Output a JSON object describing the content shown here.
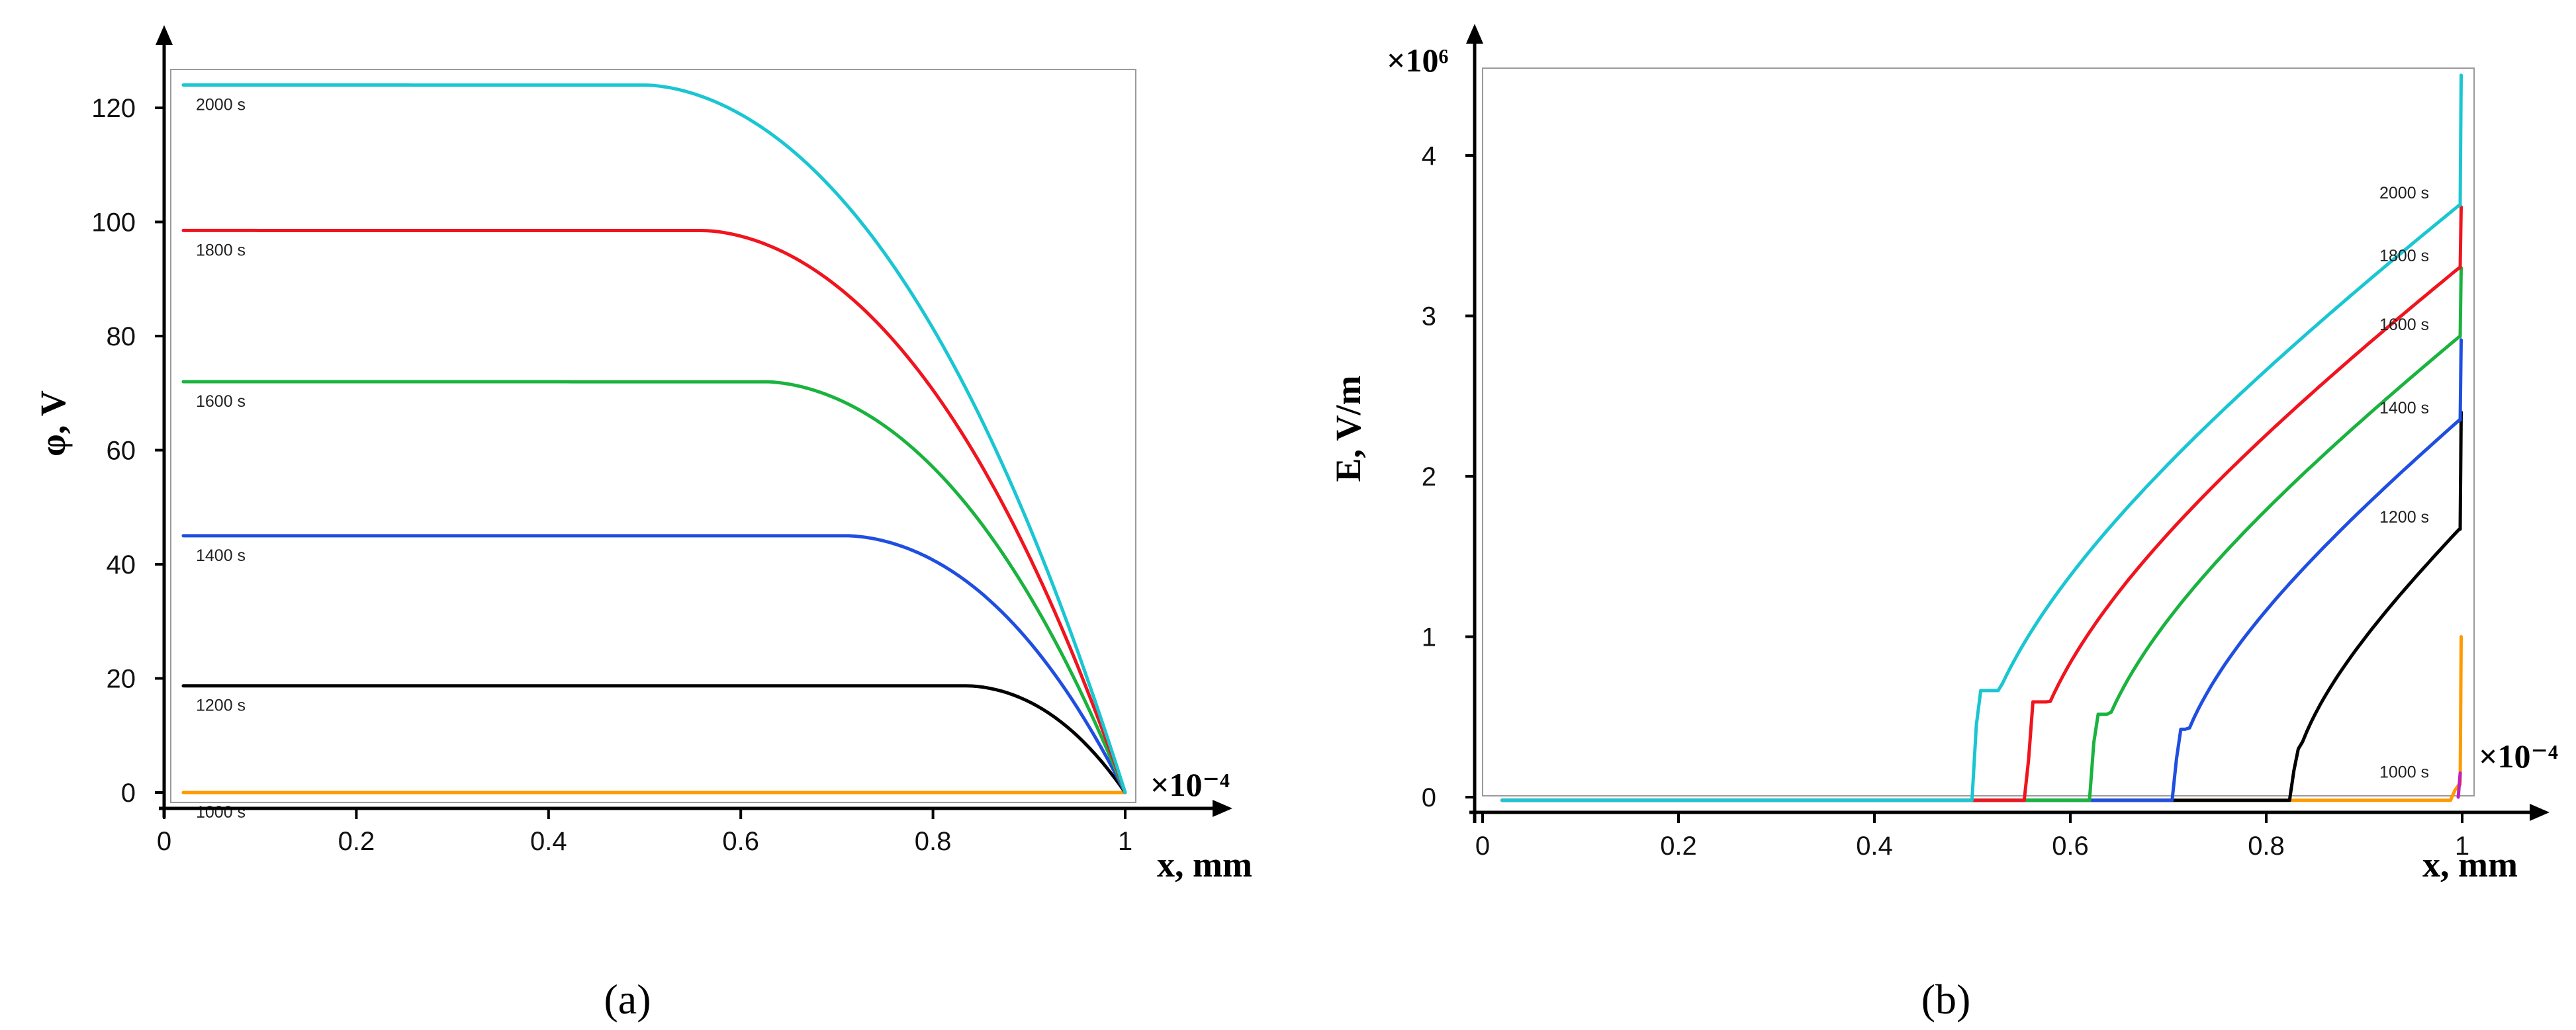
{
  "chart_data": [
    {
      "panel": "a",
      "type": "line",
      "panel_label": "(a)",
      "xlabel": "x, mm",
      "ylabel": "φ, V",
      "x_multiplier": "×10⁻⁴",
      "xlim": [
        0,
        1
      ],
      "ylim": [
        -4,
        128
      ],
      "xticks": [
        0,
        0.2,
        0.4,
        0.6,
        0.8,
        1
      ],
      "xtick_labels": [
        "0",
        "0.2",
        "0.4",
        "0.6",
        "0.8",
        "1"
      ],
      "yticks": [
        0,
        20,
        40,
        60,
        80,
        100,
        120
      ],
      "ytick_labels": [
        "0",
        "20",
        "40",
        "60",
        "80",
        "100",
        "120"
      ],
      "series": [
        {
          "name": "1000 s",
          "color": "#ff9a00",
          "plateau": 0,
          "knee": 0.99,
          "x_start": 0.02,
          "x_end": 1,
          "y_end": 0
        },
        {
          "name": "1200 s",
          "color": "#000000",
          "plateau": 18.7,
          "knee": 0.835,
          "x_start": 0.02,
          "x_end": 1,
          "y_end": 0
        },
        {
          "name": "1400 s",
          "color": "#1f4ee0",
          "plateau": 45,
          "knee": 0.71,
          "x_start": 0.02,
          "x_end": 1,
          "y_end": 0
        },
        {
          "name": "1600 s",
          "color": "#19b33e",
          "plateau": 72,
          "knee": 0.625,
          "x_start": 0.02,
          "x_end": 1,
          "y_end": 0
        },
        {
          "name": "1800 s",
          "color": "#f0141e",
          "plateau": 98.5,
          "knee": 0.56,
          "x_start": 0.02,
          "x_end": 1,
          "y_end": 0
        },
        {
          "name": "2000 s",
          "color": "#19c6d2",
          "plateau": 124,
          "knee": 0.5,
          "x_start": 0.02,
          "x_end": 1,
          "y_end": 0
        }
      ]
    },
    {
      "panel": "b",
      "type": "line",
      "panel_label": "(b)",
      "xlabel": "x, mm",
      "ylabel": "E, V/m",
      "x_multiplier": "×10⁻⁴",
      "y_multiplier": "×10⁶",
      "xlim": [
        0,
        1
      ],
      "ylim": [
        -0.1,
        4.5
      ],
      "xticks": [
        0,
        0.2,
        0.4,
        0.6,
        0.8,
        1
      ],
      "xtick_labels": [
        "0",
        "0.2",
        "0.4",
        "0.6",
        "0.8",
        "1"
      ],
      "yticks": [
        0,
        1,
        2,
        3,
        4
      ],
      "ytick_labels": [
        "0",
        "1",
        "2",
        "3",
        "4"
      ],
      "series": [
        {
          "name": "1000 s",
          "color": "#ff9a00",
          "onset": 0.99,
          "y_at_end": 0.08,
          "spike": 1.0
        },
        {
          "name": "1200 s",
          "color": "#000000",
          "onset": 0.825,
          "y_at_end": 1.67,
          "spike": 2.4
        },
        {
          "name": "1400 s",
          "color": "#1f4ee0",
          "onset": 0.705,
          "y_at_end": 2.35,
          "spike": 2.85
        },
        {
          "name": "1600 s",
          "color": "#19b33e",
          "onset": 0.62,
          "y_at_end": 2.87,
          "spike": 3.3
        },
        {
          "name": "1800 s",
          "color": "#f0141e",
          "onset": 0.555,
          "y_at_end": 3.3,
          "spike": 3.68
        },
        {
          "name": "2000 s",
          "color": "#19c6d2",
          "onset": 0.5,
          "y_at_end": 3.69,
          "spike": 4.5
        }
      ]
    }
  ]
}
